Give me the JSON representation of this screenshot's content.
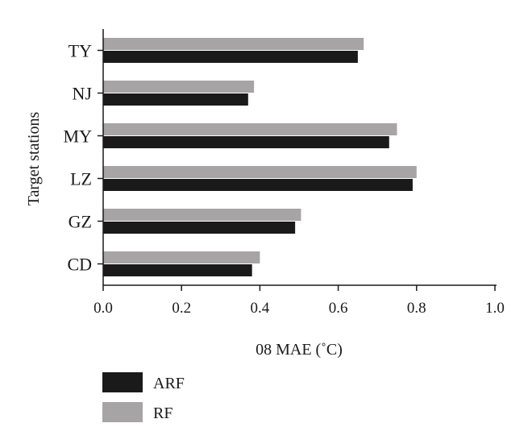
{
  "chart_data": {
    "type": "bar",
    "orientation": "horizontal",
    "categories": [
      "TY",
      "NJ",
      "MY",
      "LZ",
      "GZ",
      "CD"
    ],
    "series": [
      {
        "name": "ARF",
        "values": [
          0.65,
          0.37,
          0.73,
          0.79,
          0.49,
          0.38
        ],
        "color": "#1a1a1a"
      },
      {
        "name": "RF",
        "values": [
          0.665,
          0.385,
          0.75,
          0.8,
          0.505,
          0.4
        ],
        "color": "#a7a4a6"
      }
    ],
    "xlabel": "08 MAE (˚C)",
    "ylabel": "Target stations",
    "xlim": [
      0.0,
      1.0
    ],
    "xticks": [
      "0.0",
      "0.2",
      "0.4",
      "0.6",
      "0.8",
      "1.0"
    ],
    "legend_position": "bottom-left",
    "grid": false
  }
}
